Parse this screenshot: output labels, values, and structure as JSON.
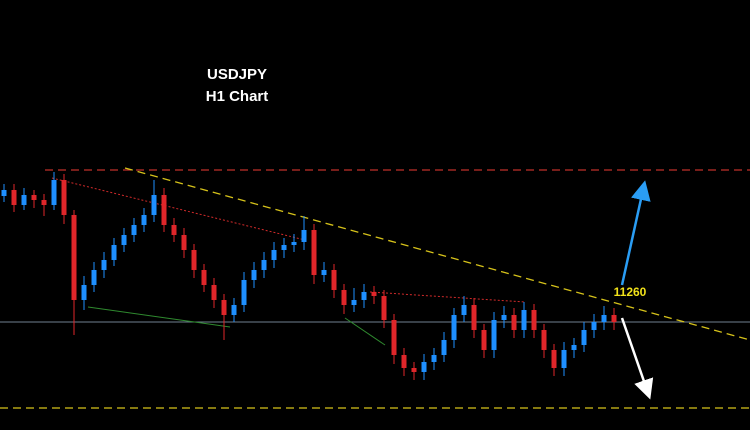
{
  "chart_data": {
    "type": "candlestick",
    "title": "USDJPY",
    "subtitle": "H1 Chart",
    "annotation": "11260",
    "ylim": [
      11195,
      11410
    ],
    "up_color": "#1e8fff",
    "down_color": "#e0262a",
    "levels": [
      {
        "value": 11325,
        "color": "#c0302a"
      },
      {
        "value": 11249,
        "color": "#6f7f90"
      },
      {
        "value": 11206,
        "color": "#d6c21a"
      }
    ],
    "candles": [
      [
        11312,
        11318,
        11309,
        11315
      ],
      [
        11315,
        11318,
        11304,
        11307.5
      ],
      [
        11307.5,
        11316,
        11305,
        11312.5
      ],
      [
        11312.5,
        11315,
        11306,
        11310
      ],
      [
        11310,
        11313,
        11302,
        11307.5
      ],
      [
        11307.5,
        11324,
        11305,
        11320
      ],
      [
        11320,
        11323,
        11298,
        11302.5
      ],
      [
        11302.5,
        11305,
        11242.5,
        11260
      ],
      [
        11260,
        11272,
        11255,
        11267.5
      ],
      [
        11267.5,
        11279,
        11264,
        11275
      ],
      [
        11275,
        11284,
        11271,
        11280
      ],
      [
        11280,
        11291,
        11277,
        11287.5
      ],
      [
        11287.5,
        11296,
        11284,
        11292.5
      ],
      [
        11292.5,
        11301,
        11289,
        11297.5
      ],
      [
        11297.5,
        11306,
        11294,
        11302.5
      ],
      [
        11302.5,
        11320,
        11299,
        11312.5
      ],
      [
        11312.5,
        11316,
        11294,
        11297.5
      ],
      [
        11297.5,
        11301,
        11289,
        11292.5
      ],
      [
        11292.5,
        11296,
        11281,
        11285
      ],
      [
        11285,
        11288,
        11271,
        11275
      ],
      [
        11275,
        11278,
        11264,
        11267.5
      ],
      [
        11267.5,
        11271,
        11256,
        11260
      ],
      [
        11260,
        11263,
        11240,
        11252.5
      ],
      [
        11252.5,
        11261,
        11249,
        11257.5
      ],
      [
        11257.5,
        11274,
        11254,
        11270
      ],
      [
        11270,
        11279,
        11266,
        11275
      ],
      [
        11275,
        11284,
        11271,
        11280
      ],
      [
        11280,
        11289,
        11276,
        11285
      ],
      [
        11285,
        11291,
        11281,
        11287.5
      ],
      [
        11287.5,
        11293,
        11284,
        11289
      ],
      [
        11289,
        11302,
        11285,
        11295
      ],
      [
        11295,
        11298,
        11268,
        11272.5
      ],
      [
        11272.5,
        11279,
        11269,
        11275
      ],
      [
        11275,
        11278,
        11261,
        11265
      ],
      [
        11265,
        11268,
        11253,
        11257.5
      ],
      [
        11257.5,
        11266,
        11254,
        11260
      ],
      [
        11260,
        11268,
        11256,
        11264
      ],
      [
        11264,
        11267,
        11258,
        11262
      ],
      [
        11262,
        11265,
        11246,
        11250
      ],
      [
        11250,
        11253,
        11228,
        11232.5
      ],
      [
        11232.5,
        11236,
        11222,
        11226
      ],
      [
        11226,
        11229,
        11220,
        11224
      ],
      [
        11224,
        11233,
        11220,
        11229
      ],
      [
        11229,
        11236,
        11225,
        11232.5
      ],
      [
        11232.5,
        11244,
        11229,
        11240
      ],
      [
        11240,
        11256,
        11236,
        11252.5
      ],
      [
        11252.5,
        11262,
        11249,
        11257.5
      ],
      [
        11257.5,
        11261,
        11241,
        11245
      ],
      [
        11245,
        11248,
        11231,
        11235
      ],
      [
        11235,
        11254,
        11231,
        11250
      ],
      [
        11250,
        11257,
        11246,
        11252.5
      ],
      [
        11252.5,
        11256,
        11241,
        11245
      ],
      [
        11245,
        11259,
        11241,
        11255
      ],
      [
        11255,
        11258,
        11241,
        11245
      ],
      [
        11245,
        11248,
        11231,
        11235
      ],
      [
        11235,
        11238,
        11222,
        11226
      ],
      [
        11226,
        11239,
        11222,
        11235
      ],
      [
        11235,
        11241,
        11231,
        11237.5
      ],
      [
        11237.5,
        11249,
        11234,
        11245
      ],
      [
        11245,
        11253,
        11241,
        11249
      ],
      [
        11249,
        11257,
        11245,
        11252.5
      ],
      [
        11252.5,
        11256,
        11245,
        11249
      ]
    ]
  }
}
